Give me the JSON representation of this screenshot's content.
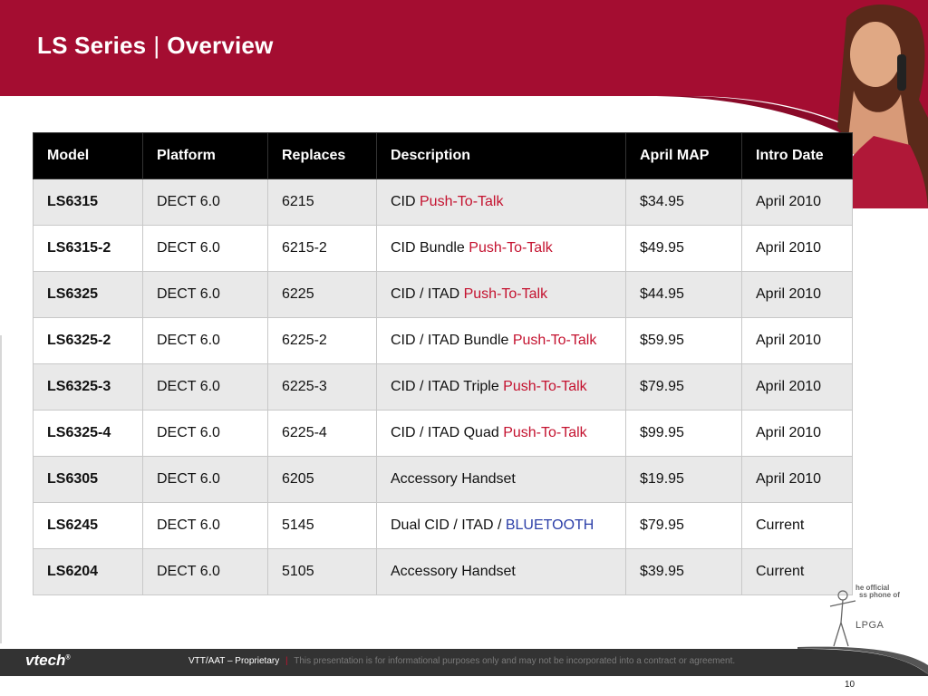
{
  "slide": {
    "title": "LS Series",
    "title_separator": "|",
    "subtitle": "Overview",
    "page_number": "10"
  },
  "table": {
    "headers": [
      "Model",
      "Platform",
      "Replaces",
      "Description",
      "April MAP",
      "Intro Date"
    ],
    "rows": [
      {
        "model": "LS6315",
        "platform": "DECT 6.0",
        "replaces": "6215",
        "desc_plain": "CID ",
        "desc_accent": "Push-To-Talk",
        "map": "$34.95",
        "intro": "April 2010"
      },
      {
        "model": "LS6315-2",
        "platform": "DECT 6.0",
        "replaces": "6215-2",
        "desc_plain": "CID Bundle ",
        "desc_accent": "Push-To-Talk",
        "map": "$49.95",
        "intro": "April 2010"
      },
      {
        "model": "LS6325",
        "platform": "DECT 6.0",
        "replaces": "6225",
        "desc_plain": "CID / ITAD ",
        "desc_accent": "Push-To-Talk",
        "map": "$44.95",
        "intro": "April 2010"
      },
      {
        "model": "LS6325-2",
        "platform": "DECT 6.0",
        "replaces": "6225-2",
        "desc_plain": "CID / ITAD Bundle ",
        "desc_accent": "Push-To-Talk",
        "map": "$59.95",
        "intro": "April 2010"
      },
      {
        "model": "LS6325-3",
        "platform": "DECT 6.0",
        "replaces": "6225-3",
        "desc_plain": "CID / ITAD Triple ",
        "desc_accent": "Push-To-Talk",
        "map": "$79.95",
        "intro": "April 2010"
      },
      {
        "model": "LS6325-4",
        "platform": "DECT 6.0",
        "replaces": "6225-4",
        "desc_plain": "CID / ITAD Quad ",
        "desc_accent": "Push-To-Talk",
        "map": "$99.95",
        "intro": "April 2010"
      },
      {
        "model": "LS6305",
        "platform": "DECT 6.0",
        "replaces": "6205",
        "desc_plain": "Accessory Handset",
        "desc_accent": "",
        "map": "$19.95",
        "intro": "April 2010"
      },
      {
        "model": "LS6245",
        "platform": "DECT 6.0",
        "replaces": "5145",
        "desc_plain": "Dual CID / ITAD / ",
        "desc_accent": "BLUETOOTH",
        "map": "$79.95",
        "intro": "Current"
      },
      {
        "model": "LS6204",
        "platform": "DECT 6.0",
        "replaces": "5105",
        "desc_plain": "Accessory Handset",
        "desc_accent": "",
        "map": "$39.95",
        "intro": "Current"
      }
    ]
  },
  "sponsor": {
    "line1": "he official",
    "line2": "ss phone of",
    "logo_text": "LPGA"
  },
  "footer": {
    "brand": "vtech",
    "brand_mark": "®",
    "label": "VTT/AAT – Proprietary",
    "separator": "|",
    "disclaimer": "This presentation is for informational purposes only and may not be incorporated into a contract or agreement."
  },
  "colors": {
    "brand_red": "#a40d31",
    "accent_red": "#c4122f",
    "bluetooth_blue": "#2b3ea8",
    "footer_gray": "#333333"
  }
}
